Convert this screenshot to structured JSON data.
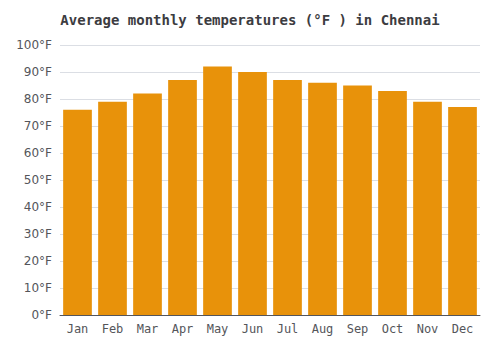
{
  "chart_data": {
    "type": "bar",
    "title": "Average monthly temperatures (°F ) in Chennai",
    "categories": [
      "Jan",
      "Feb",
      "Mar",
      "Apr",
      "May",
      "Jun",
      "Jul",
      "Aug",
      "Sep",
      "Oct",
      "Nov",
      "Dec"
    ],
    "values": [
      76,
      79,
      82,
      87,
      92,
      90,
      87,
      86,
      85,
      83,
      79,
      77
    ],
    "color": "#E8920A",
    "ylim": [
      0,
      100
    ],
    "yticks": [
      {
        "value": 0,
        "label": "0°F"
      },
      {
        "value": 10,
        "label": "10°F"
      },
      {
        "value": 20,
        "label": "20°F"
      },
      {
        "value": 30,
        "label": "30°F"
      },
      {
        "value": 40,
        "label": "40°F"
      },
      {
        "value": 50,
        "label": "50°F"
      },
      {
        "value": 60,
        "label": "60°F"
      },
      {
        "value": 70,
        "label": "70°F"
      },
      {
        "value": 80,
        "label": "80°F"
      },
      {
        "value": 90,
        "label": "90°F"
      },
      {
        "value": 100,
        "label": "100°F"
      }
    ],
    "grid": true
  }
}
